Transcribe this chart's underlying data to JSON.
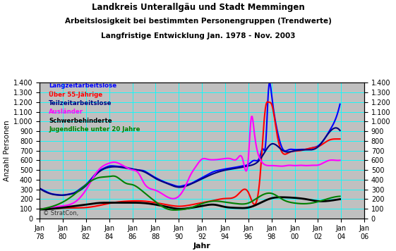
{
  "title_line1": "Landkreis Unterallgäu und Stadt Memmingen",
  "title_line2": "Arbeitslosigkeit bei bestimmten Personengruppen (Trendwerte)",
  "title_line3": "Langfristige Entwicklung Jan. 1978 - Nov. 2003",
  "ylabel": "Anzahl Personen",
  "xlabel": "Jahr",
  "watermark": "© StratCon,",
  "ylim": [
    0,
    1400
  ],
  "yticks": [
    0,
    100,
    200,
    300,
    400,
    500,
    600,
    700,
    800,
    900,
    1000,
    1100,
    1200,
    1300,
    1400
  ],
  "xlim_start": 1978,
  "xlim_end": 2006,
  "background_color": "#ffffff",
  "plot_bg_color": "#c0c0c0",
  "grid_color": "#00ffff",
  "legend": [
    {
      "label": "Langzeitarbeitslose",
      "color": "#0000ff"
    },
    {
      "label": "Über 55-Jährige",
      "color": "#ff0000"
    },
    {
      "label": "Teilzeitarbeitslose",
      "color": "#000080"
    },
    {
      "label": "Ausländer",
      "color": "#ff00ff"
    },
    {
      "label": "Schwerbehinderte",
      "color": "#000000"
    },
    {
      "label": "Jugendliche unter 20 Jahre",
      "color": "#008000"
    }
  ],
  "series": {
    "Langzeitarbeitslose": {
      "color": "#0000ff",
      "lw": 1.5,
      "x": [
        1978.0,
        1978.5,
        1979.0,
        1979.5,
        1980.0,
        1980.5,
        1981.0,
        1981.5,
        1982.0,
        1982.5,
        1983.0,
        1983.5,
        1984.0,
        1984.5,
        1985.0,
        1985.5,
        1986.0,
        1986.5,
        1987.0,
        1987.5,
        1988.0,
        1988.5,
        1989.0,
        1989.5,
        1990.0,
        1990.5,
        1991.0,
        1991.5,
        1992.0,
        1992.5,
        1993.0,
        1993.5,
        1994.0,
        1994.5,
        1995.0,
        1995.5,
        1996.0,
        1996.5,
        1997.0,
        1997.25,
        1997.5,
        1997.75,
        1998.0,
        1998.5,
        1999.0,
        1999.5,
        2000.0,
        2000.5,
        2001.0,
        2001.5,
        2002.0,
        2002.5,
        2003.0,
        2003.5,
        2003.9
      ],
      "y": [
        310,
        280,
        255,
        245,
        240,
        250,
        265,
        305,
        350,
        415,
        480,
        515,
        540,
        540,
        535,
        525,
        510,
        500,
        490,
        455,
        420,
        390,
        365,
        345,
        330,
        342,
        358,
        388,
        420,
        452,
        482,
        498,
        510,
        520,
        530,
        542,
        558,
        598,
        640,
        720,
        780,
        1350,
        1280,
        900,
        710,
        710,
        710,
        712,
        714,
        728,
        748,
        810,
        905,
        1020,
        1180
      ]
    },
    "Über 55-Jährige": {
      "color": "#ff0000",
      "lw": 1.5,
      "x": [
        1978.0,
        1979.0,
        1980.0,
        1981.0,
        1982.0,
        1983.0,
        1984.0,
        1985.0,
        1986.0,
        1987.0,
        1988.0,
        1989.0,
        1990.0,
        1991.0,
        1992.0,
        1993.0,
        1994.0,
        1995.0,
        1996.0,
        1997.0,
        1997.5,
        1997.75,
        1998.0,
        1998.5,
        1999.0,
        1999.5,
        2000.0,
        2000.5,
        2001.0,
        2001.5,
        2002.0,
        2002.5,
        2003.0,
        2003.5,
        2003.9
      ],
      "y": [
        100,
        100,
        105,
        108,
        112,
        130,
        155,
        172,
        180,
        178,
        162,
        140,
        125,
        138,
        162,
        185,
        205,
        235,
        268,
        420,
        1160,
        1200,
        1180,
        850,
        670,
        680,
        695,
        700,
        715,
        728,
        740,
        775,
        810,
        820,
        820
      ]
    },
    "Teilzeitarbeitslose": {
      "color": "#000080",
      "lw": 1.5,
      "x": [
        1978.0,
        1979.0,
        1980.0,
        1981.0,
        1982.0,
        1983.0,
        1984.0,
        1985.0,
        1986.0,
        1987.0,
        1988.0,
        1989.0,
        1990.0,
        1991.0,
        1992.0,
        1993.0,
        1994.0,
        1995.0,
        1996.0,
        1997.0,
        1998.0,
        1999.0,
        2000.0,
        2001.0,
        2002.0,
        2003.0,
        2003.9
      ],
      "y": [
        310,
        252,
        240,
        262,
        338,
        468,
        528,
        528,
        508,
        482,
        412,
        360,
        322,
        352,
        408,
        462,
        498,
        518,
        542,
        608,
        768,
        698,
        698,
        708,
        738,
        892,
        908
      ]
    },
    "Ausländer": {
      "color": "#ff00ff",
      "lw": 1.5,
      "x": [
        1978.0,
        1979.0,
        1980.0,
        1981.0,
        1982.0,
        1983.0,
        1984.0,
        1984.5,
        1985.0,
        1985.5,
        1986.0,
        1986.5,
        1987.0,
        1988.0,
        1989.0,
        1990.0,
        1990.5,
        1991.0,
        1991.5,
        1992.0,
        1992.5,
        1993.0,
        1993.5,
        1994.0,
        1994.5,
        1995.0,
        1995.5,
        1996.0,
        1996.25,
        1996.5,
        1997.0,
        1997.5,
        1998.0,
        1998.5,
        1999.0,
        1999.5,
        2000.0,
        2000.5,
        2001.0,
        2001.5,
        2002.0,
        2002.5,
        2003.0,
        2003.5,
        2003.9
      ],
      "y": [
        95,
        112,
        128,
        165,
        295,
        488,
        570,
        580,
        558,
        525,
        500,
        472,
        365,
        290,
        222,
        228,
        315,
        445,
        540,
        612,
        610,
        605,
        610,
        618,
        615,
        612,
        615,
        618,
        1040,
        900,
        615,
        550,
        545,
        542,
        540,
        548,
        545,
        548,
        545,
        548,
        550,
        575,
        600,
        600,
        600
      ]
    },
    "Schwerbehinderte": {
      "color": "#000000",
      "lw": 2.0,
      "x": [
        1978.0,
        1979.0,
        1980.0,
        1981.0,
        1982.0,
        1983.0,
        1984.0,
        1985.0,
        1986.0,
        1987.0,
        1988.0,
        1989.0,
        1990.0,
        1991.0,
        1992.0,
        1993.0,
        1994.0,
        1995.0,
        1996.0,
        1997.0,
        1998.0,
        1999.0,
        2000.0,
        2001.0,
        2002.0,
        2003.0,
        2003.9
      ],
      "y": [
        92,
        98,
        112,
        128,
        142,
        158,
        162,
        162,
        162,
        158,
        142,
        118,
        98,
        108,
        128,
        142,
        118,
        108,
        112,
        158,
        208,
        218,
        212,
        198,
        178,
        182,
        198
      ]
    },
    "Jugendliche unter 20 Jahre": {
      "color": "#008000",
      "lw": 1.5,
      "x": [
        1978.0,
        1979.0,
        1980.0,
        1981.0,
        1982.0,
        1983.0,
        1984.0,
        1984.5,
        1985.0,
        1985.5,
        1986.0,
        1987.0,
        1988.0,
        1989.0,
        1990.0,
        1991.0,
        1992.0,
        1993.0,
        1994.0,
        1995.0,
        1996.0,
        1997.0,
        1998.0,
        1999.0,
        2000.0,
        2001.0,
        2002.0,
        2003.0,
        2003.9
      ],
      "y": [
        92,
        120,
        168,
        248,
        348,
        418,
        432,
        435,
        398,
        360,
        348,
        268,
        172,
        98,
        88,
        108,
        152,
        178,
        168,
        152,
        158,
        228,
        258,
        192,
        158,
        152,
        172,
        208,
        228
      ]
    }
  }
}
